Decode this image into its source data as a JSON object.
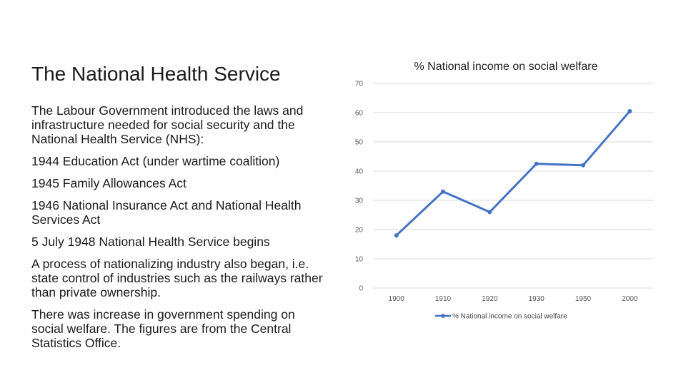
{
  "slide": {
    "title": "The National Health Service",
    "paragraphs": [
      "The Labour Government introduced the laws and infrastructure needed for social security and the National Health Service (NHS):",
      "1944 Education Act (under wartime coalition)",
      "1945 Family Allowances Act",
      "1946 National Insurance Act and National Health Services Act",
      "5 July 1948 National Health Service begins",
      "A process of nationalizing industry also began, i.e. state control of industries such as the railways rather than private ownership.",
      "There was increase in government spending on social welfare. The figures are from the Central Statistics Office."
    ]
  },
  "chart_data": {
    "type": "line",
    "title": "% National income on social welfare",
    "categories": [
      "1900",
      "1910",
      "1920",
      "1930",
      "1950",
      "2000"
    ],
    "series": [
      {
        "name": "% National income on social welfare",
        "values": [
          18,
          33,
          26,
          42.5,
          42,
          60.5
        ],
        "color": "#4472c4"
      }
    ],
    "yticks": [
      0,
      10,
      20,
      30,
      40,
      50,
      60,
      70
    ],
    "ylim": [
      0,
      70
    ],
    "grid": true,
    "legend_position": "bottom",
    "gridline_color": "#d9d9d9"
  }
}
